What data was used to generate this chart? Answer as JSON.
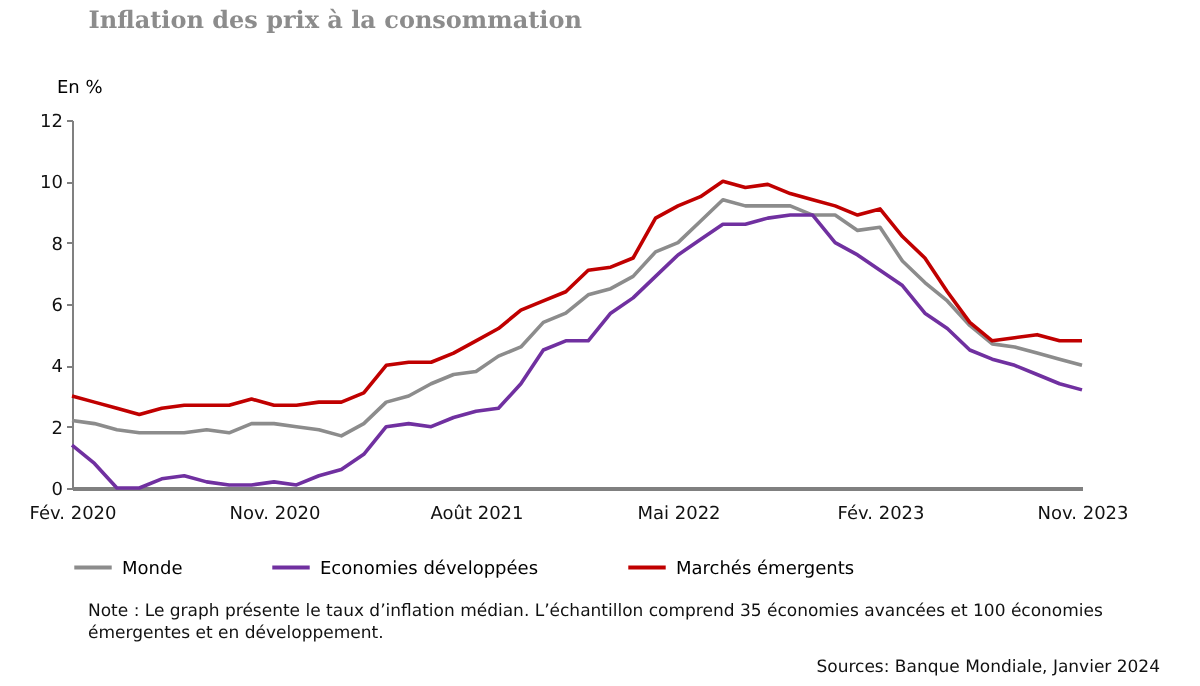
{
  "chart_data": {
    "type": "line",
    "title": "Inflation des prix à la consommation",
    "ylabel": "En %",
    "categories": [
      "Fév. 2020",
      null,
      null,
      null,
      null,
      null,
      null,
      null,
      null,
      "Nov. 2020",
      null,
      null,
      null,
      null,
      null,
      null,
      null,
      null,
      "Août 2021",
      null,
      null,
      null,
      null,
      null,
      null,
      null,
      null,
      "Mai 2022",
      null,
      null,
      null,
      null,
      null,
      null,
      null,
      null,
      "Fév. 2023",
      null,
      null,
      null,
      null,
      null,
      null,
      null,
      null,
      "Nov. 2023"
    ],
    "series": [
      {
        "name": "Monde",
        "color": "#8c8c8c",
        "values": [
          2.2,
          2.1,
          1.9,
          1.8,
          1.8,
          1.8,
          1.9,
          1.8,
          2.1,
          2.1,
          2.0,
          1.9,
          1.7,
          2.1,
          2.8,
          3.0,
          3.4,
          3.7,
          3.8,
          4.3,
          4.6,
          5.4,
          5.7,
          6.3,
          6.5,
          6.9,
          7.7,
          8.0,
          8.7,
          9.4,
          9.2,
          9.2,
          9.2,
          8.9,
          8.9,
          8.4,
          8.5,
          7.4,
          6.7,
          6.1,
          5.3,
          4.7,
          4.6,
          4.4,
          4.2,
          4.0
        ]
      },
      {
        "name": "Economies développées",
        "color": "#7030a0",
        "values": [
          1.4,
          0.8,
          0.0,
          0.0,
          0.3,
          0.4,
          0.2,
          0.1,
          0.1,
          0.2,
          0.1,
          0.4,
          0.6,
          1.1,
          2.0,
          2.1,
          2.0,
          2.3,
          2.5,
          2.6,
          3.4,
          4.5,
          4.8,
          4.8,
          5.7,
          6.2,
          6.9,
          7.6,
          8.1,
          8.6,
          8.6,
          8.8,
          8.9,
          8.9,
          8.0,
          7.6,
          7.1,
          6.6,
          5.7,
          5.2,
          4.5,
          4.2,
          4.0,
          3.7,
          3.4,
          3.2
        ]
      },
      {
        "name": "Marchés émergents",
        "color": "#c00000",
        "values": [
          3.0,
          2.8,
          2.6,
          2.4,
          2.6,
          2.7,
          2.7,
          2.7,
          2.9,
          2.7,
          2.7,
          2.8,
          2.8,
          3.1,
          4.0,
          4.1,
          4.1,
          4.4,
          4.8,
          5.2,
          5.8,
          6.1,
          6.4,
          7.1,
          7.2,
          7.5,
          8.8,
          9.2,
          9.5,
          10.0,
          9.8,
          9.9,
          9.6,
          9.4,
          9.2,
          8.9,
          9.1,
          8.2,
          7.5,
          6.4,
          5.4,
          4.8,
          4.9,
          5.0,
          4.8,
          4.8
        ]
      }
    ],
    "ylim": [
      0,
      12
    ],
    "yticks": [
      0,
      2,
      4,
      6,
      8,
      10,
      12
    ],
    "grid": false,
    "legend": "bottom",
    "annotations": [
      "Note : Le graph présente le taux d’inflation médian. L’échantillon comprend 35 économies avancées et 100 économies émergentes et en développement.",
      "Sources: Banque Mondiale, Janvier 2024"
    ]
  }
}
